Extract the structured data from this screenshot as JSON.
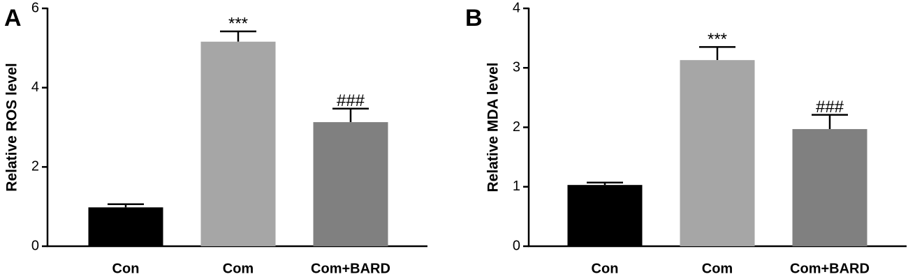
{
  "chart_data": [
    {
      "type": "bar",
      "panel": "A",
      "ylabel": "Relative ROS level",
      "categories": [
        "Con",
        "Com",
        "Com+BARD"
      ],
      "values": [
        0.98,
        5.16,
        3.13
      ],
      "errors": [
        0.08,
        0.26,
        0.34
      ],
      "colors": [
        "#000000",
        "#a6a6a6",
        "#808080"
      ],
      "annotations": [
        null,
        "***",
        "###"
      ],
      "ylim": [
        0,
        6
      ],
      "yticks": [
        0,
        2,
        4,
        6
      ]
    },
    {
      "type": "bar",
      "panel": "B",
      "ylabel": "Relative MDA level",
      "categories": [
        "Con",
        "Com",
        "Com+BARD"
      ],
      "values": [
        1.03,
        3.13,
        1.97
      ],
      "errors": [
        0.04,
        0.22,
        0.24
      ],
      "colors": [
        "#000000",
        "#a6a6a6",
        "#808080"
      ],
      "annotations": [
        null,
        "***",
        "###"
      ],
      "ylim": [
        0,
        4
      ],
      "yticks": [
        0,
        1,
        2,
        3,
        4
      ]
    }
  ]
}
